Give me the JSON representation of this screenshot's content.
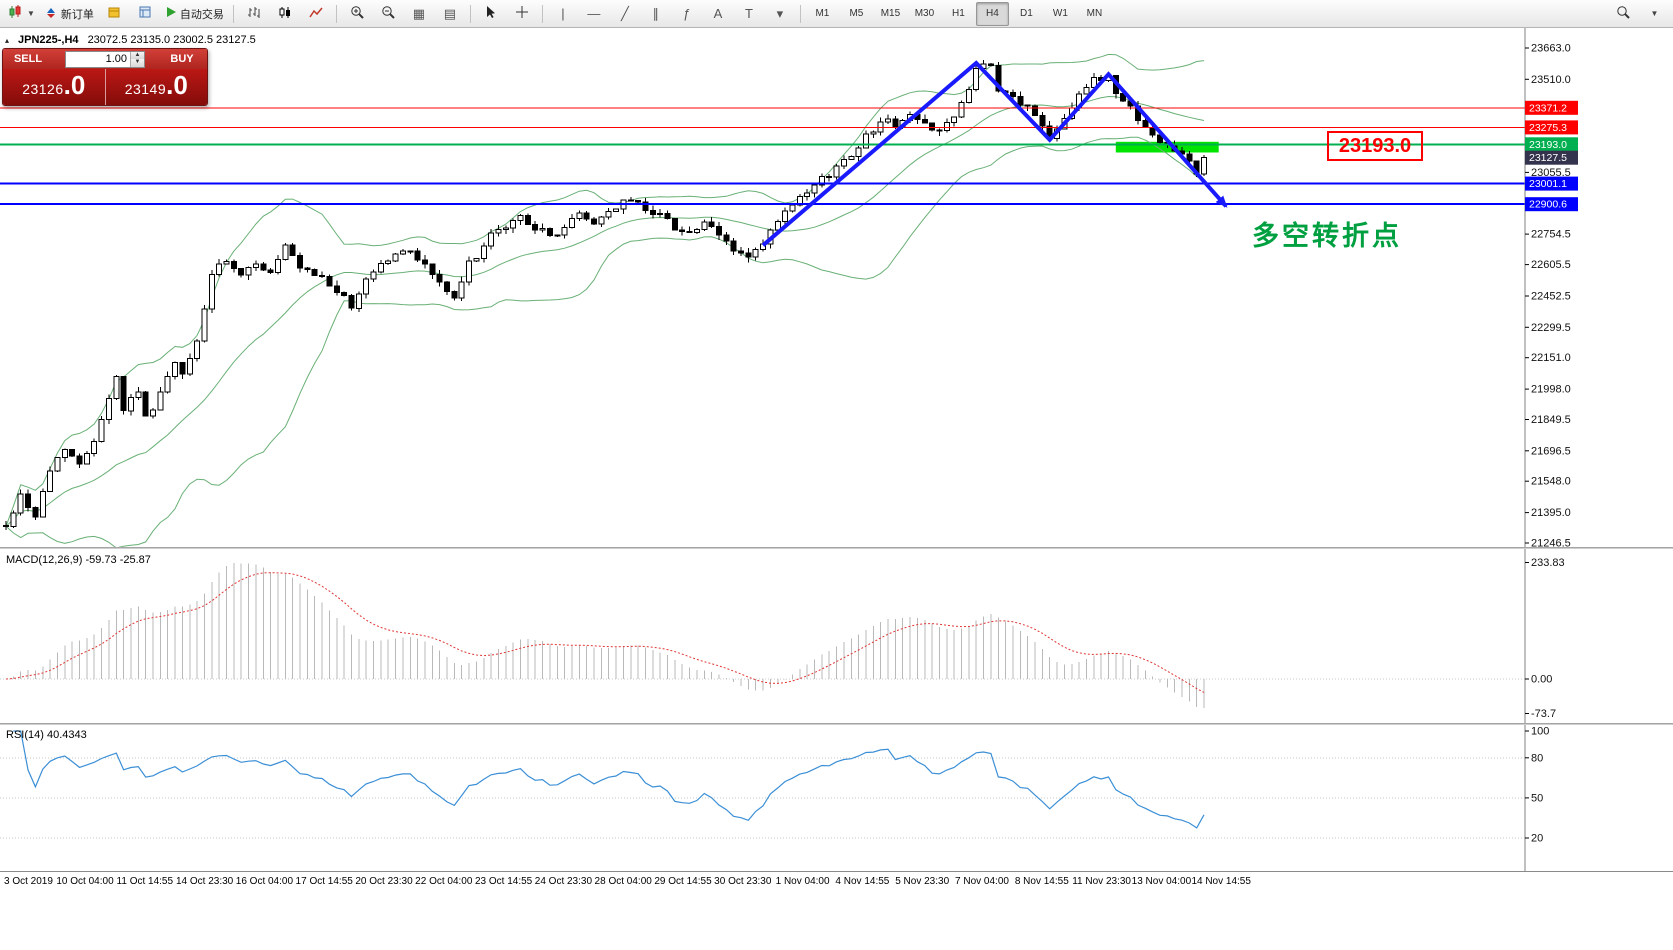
{
  "toolbar": {
    "new_order_label": "新订单",
    "autotrading_label": "自动交易",
    "timeframes": [
      "M1",
      "M5",
      "M15",
      "M30",
      "H1",
      "H4",
      "D1",
      "W1",
      "MN"
    ],
    "active_timeframe": "H4"
  },
  "symbol_bar": {
    "symbol": "JPN225-,H4",
    "ohlc": "23072.5 23135.0 23002.5 23127.5"
  },
  "trade_panel": {
    "sell_label": "SELL",
    "buy_label": "BUY",
    "lot": "1.00",
    "sell_price": "23126",
    "sell_price_big": ".0",
    "buy_price": "23149",
    "buy_price_big": ".0"
  },
  "indicator_labels": {
    "macd": "MACD(12,26,9) -59.73 -25.87",
    "rsi": "RSI(14) 40.4343"
  },
  "annotations": {
    "price_label": "23193.0",
    "note": "多空转折点"
  },
  "chart_data": {
    "type": "candlestick",
    "symbol": "JPN225-",
    "timeframe": "H4",
    "ohlc_display": {
      "open": 23072.5,
      "high": 23135.0,
      "low": 23002.5,
      "close": 23127.5
    },
    "y_axis": {
      "max": 23663.0,
      "min": 21246.5,
      "labels": [
        23663.0,
        23510.0,
        23055.5,
        22754.5,
        22605.5,
        22452.5,
        22299.5,
        22151.0,
        21998.0,
        21849.5,
        21696.5,
        21548.0,
        21395.0,
        21246.5
      ]
    },
    "levels": [
      {
        "value": 23371.2,
        "color": "#ff0000",
        "width": 1
      },
      {
        "value": 23275.3,
        "color": "#ff0000",
        "width": 1
      },
      {
        "value": 23193.0,
        "color": "#00b050",
        "width": 2
      },
      {
        "value": 23001.1,
        "color": "#0000ff",
        "width": 2
      },
      {
        "value": 22900.6,
        "color": "#0000ff",
        "width": 2
      }
    ],
    "current_price": {
      "value": 23127.5,
      "badge_color": "#33334d"
    },
    "candle_count": 164,
    "last_close": 23127.5,
    "price_path": [
      [
        0,
        21330
      ],
      [
        2,
        21480
      ],
      [
        4,
        21380
      ],
      [
        6,
        21600
      ],
      [
        8,
        21720
      ],
      [
        10,
        21620
      ],
      [
        12,
        21760
      ],
      [
        15,
        22060
      ],
      [
        16,
        21900
      ],
      [
        18,
        22000
      ],
      [
        19,
        21850
      ],
      [
        21,
        21980
      ],
      [
        23,
        22120
      ],
      [
        24,
        22060
      ],
      [
        26,
        22230
      ],
      [
        28,
        22560
      ],
      [
        30,
        22620
      ],
      [
        32,
        22540
      ],
      [
        34,
        22620
      ],
      [
        36,
        22560
      ],
      [
        38,
        22690
      ],
      [
        40,
        22580
      ],
      [
        43,
        22540
      ],
      [
        45,
        22480
      ],
      [
        47,
        22390
      ],
      [
        49,
        22540
      ],
      [
        51,
        22610
      ],
      [
        53,
        22650
      ],
      [
        55,
        22680
      ],
      [
        57,
        22600
      ],
      [
        59,
        22520
      ],
      [
        61,
        22430
      ],
      [
        63,
        22610
      ],
      [
        66,
        22740
      ],
      [
        68,
        22790
      ],
      [
        70,
        22840
      ],
      [
        72,
        22790
      ],
      [
        74,
        22740
      ],
      [
        76,
        22790
      ],
      [
        78,
        22850
      ],
      [
        80,
        22810
      ],
      [
        83,
        22890
      ],
      [
        85,
        22920
      ],
      [
        87,
        22880
      ],
      [
        89,
        22850
      ],
      [
        91,
        22790
      ],
      [
        93,
        22760
      ],
      [
        95,
        22800
      ],
      [
        97,
        22750
      ],
      [
        99,
        22680
      ],
      [
        101,
        22640
      ],
      [
        103,
        22700
      ],
      [
        105,
        22820
      ],
      [
        107,
        22890
      ],
      [
        109,
        22950
      ],
      [
        111,
        23020
      ],
      [
        113,
        23080
      ],
      [
        115,
        23150
      ],
      [
        117,
        23230
      ],
      [
        119,
        23310
      ],
      [
        121,
        23290
      ],
      [
        123,
        23330
      ],
      [
        125,
        23290
      ],
      [
        127,
        23270
      ],
      [
        129,
        23320
      ],
      [
        131,
        23450
      ],
      [
        132,
        23580
      ],
      [
        134,
        23560
      ],
      [
        135,
        23450
      ],
      [
        137,
        23420
      ],
      [
        139,
        23370
      ],
      [
        141,
        23290
      ],
      [
        142,
        23230
      ],
      [
        144,
        23330
      ],
      [
        146,
        23440
      ],
      [
        148,
        23500
      ],
      [
        150,
        23530
      ],
      [
        151,
        23440
      ],
      [
        153,
        23380
      ],
      [
        155,
        23270
      ],
      [
        157,
        23200
      ],
      [
        159,
        23180
      ],
      [
        161,
        23120
      ],
      [
        162,
        23050
      ],
      [
        163,
        23127.5
      ]
    ],
    "bollinger": {
      "period": 20,
      "deviation": 2,
      "color": "#69b076"
    },
    "zigzag": {
      "color": "#1a1aff",
      "points": [
        [
          103,
          22700
        ],
        [
          132,
          23590
        ],
        [
          142,
          23215
        ],
        [
          150,
          23535
        ],
        [
          166,
          22890
        ]
      ]
    },
    "highlight_rect": {
      "i1": 151,
      "i2": 165,
      "p1": 23205,
      "p2": 23153,
      "color": "#00e400"
    },
    "indicators": {
      "macd": {
        "params": "12,26,9",
        "value": -59.73,
        "signal_value": -25.87,
        "scale": [
          "233.83",
          "0.00",
          "-73.7"
        ],
        "histogram_color": "#b9b9b9",
        "signal_color": "#e03636"
      },
      "rsi": {
        "params": "14",
        "value": 40.4343,
        "period": 14,
        "levels": [
          80,
          50,
          20
        ],
        "scale": [
          "100",
          "80",
          "50",
          "20"
        ],
        "line_color": "#3b8fd6"
      }
    },
    "x_axis": [
      "3 Oct 2019",
      "10 Oct 04:00",
      "11 Oct 14:55",
      "14 Oct 23:30",
      "16 Oct 04:00",
      "17 Oct 14:55",
      "20 Oct 23:30",
      "22 Oct 04:00",
      "23 Oct 14:55",
      "24 Oct 23:30",
      "28 Oct 04:00",
      "29 Oct 14:55",
      "30 Oct 23:30",
      "1 Nov 04:00",
      "4 Nov 14:55",
      "5 Nov 23:30",
      "7 Nov 04:00",
      "8 Nov 14:55",
      "11 Nov 23:30",
      "13 Nov 04:00",
      "14 Nov 14:55"
    ]
  }
}
